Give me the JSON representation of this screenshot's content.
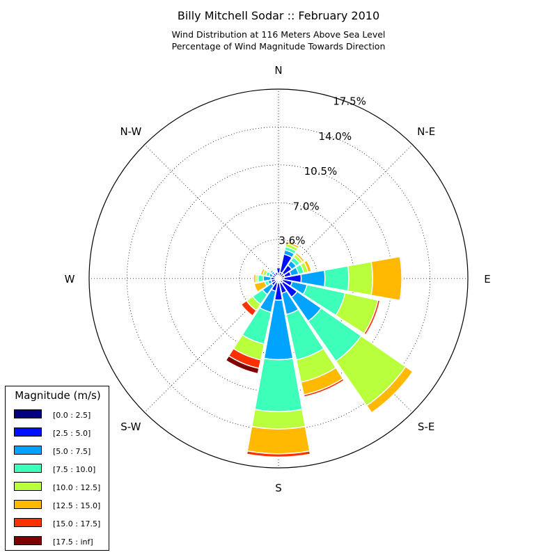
{
  "chart_data": {
    "type": "windrose",
    "title": "Billy Mitchell Sodar :: February 2010",
    "subtitle_line1": "Wind Distribution at 116 Meters Above Sea Level",
    "subtitle_line2": "Percentage of Wind Magnitude Towards Direction",
    "radial_ticks": [
      3.6,
      7.0,
      10.5,
      14.0,
      17.5
    ],
    "radial_tick_labels": [
      "3.6%",
      "7.0%",
      "10.5%",
      "14.0%",
      "17.5%"
    ],
    "rmax": 17.5,
    "direction_labels": [
      {
        "name": "N",
        "angle": 0
      },
      {
        "name": "N-E",
        "angle": 45
      },
      {
        "name": "E",
        "angle": 90
      },
      {
        "name": "S-E",
        "angle": 135
      },
      {
        "name": "S",
        "angle": 180
      },
      {
        "name": "S-W",
        "angle": 225
      },
      {
        "name": "W",
        "angle": 270
      },
      {
        "name": "N-W",
        "angle": 315
      }
    ],
    "bins": [
      {
        "label": "[0.0 : 2.5]",
        "color": "#000080"
      },
      {
        "label": "[2.5 : 5.0]",
        "color": "#0010ff"
      },
      {
        "label": "[5.0 : 7.5]",
        "color": "#00a4ff"
      },
      {
        "label": "[7.5 : 10.0]",
        "color": "#3dffba"
      },
      {
        "label": "[10.0 : 12.5]",
        "color": "#baff3c"
      },
      {
        "label": "[12.5 : 15.0]",
        "color": "#ffb900"
      },
      {
        "label": "[15.0 : 17.5]",
        "color": "#ff3000"
      },
      {
        "label": "[17.5 : inf]",
        "color": "#800000"
      }
    ],
    "sector_width_deg": 22.5,
    "sectors": [
      {
        "direction": 0,
        "values": [
          0.5,
          0.5,
          0,
          0,
          0,
          0,
          0,
          0
        ]
      },
      {
        "direction": 22.5,
        "values": [
          0.6,
          1.7,
          0.4,
          0.3,
          0.3,
          0.2,
          0,
          0
        ]
      },
      {
        "direction": 45,
        "values": [
          0.6,
          0.9,
          0.5,
          0.4,
          0.3,
          0.2,
          0,
          0
        ]
      },
      {
        "direction": 67.5,
        "values": [
          0.6,
          0.6,
          0.7,
          0.5,
          0.4,
          0.3,
          0,
          0
        ]
      },
      {
        "direction": 90,
        "values": [
          0.5,
          1.6,
          2.2,
          2.2,
          2.2,
          2.7,
          0.1,
          0
        ]
      },
      {
        "direction": 112.5,
        "values": [
          0.4,
          0.9,
          1.4,
          3.6,
          3.1,
          0,
          0.2,
          0
        ]
      },
      {
        "direction": 135,
        "values": [
          0.5,
          1.6,
          2.7,
          4.5,
          5.0,
          0.8,
          0,
          0
        ]
      },
      {
        "direction": 157.5,
        "values": [
          0.4,
          1.0,
          2.0,
          4.3,
          2.1,
          1.2,
          0.2,
          0
        ]
      },
      {
        "direction": 180,
        "values": [
          0.4,
          1.6,
          5.5,
          4.8,
          1.6,
          2.3,
          0.3,
          0
        ]
      },
      {
        "direction": 202.5,
        "values": [
          0.4,
          0.8,
          2.0,
          3.0,
          1.5,
          0,
          0.8,
          0.5
        ]
      },
      {
        "direction": 225,
        "values": [
          0.3,
          0.5,
          1.0,
          1.1,
          0.7,
          0,
          0.6,
          0
        ]
      },
      {
        "direction": 247.5,
        "values": [
          0.3,
          0.4,
          0.3,
          0.3,
          0,
          1.0,
          0,
          0
        ]
      },
      {
        "direction": 270,
        "values": [
          0.3,
          0.4,
          0.7,
          0.5,
          0.2,
          0.2,
          0,
          0
        ]
      },
      {
        "direction": 292.5,
        "values": [
          0.3,
          0.3,
          0.3,
          0.3,
          0.3,
          0.2,
          0,
          0
        ]
      },
      {
        "direction": 315,
        "values": [
          0.3,
          0.3,
          0.2,
          0.2,
          0.1,
          0,
          0,
          0
        ]
      },
      {
        "direction": 337.5,
        "values": [
          0.3,
          0.3,
          0,
          0,
          0,
          0,
          0,
          0
        ]
      }
    ],
    "legend": {
      "title": "Magnitude (m/s)",
      "placement": "lower-left"
    }
  }
}
